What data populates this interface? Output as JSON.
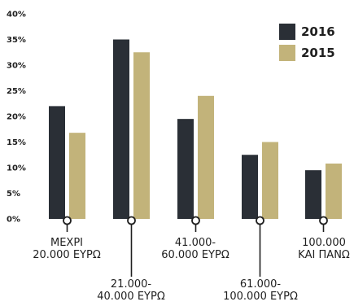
{
  "chart_data": {
    "type": "bar",
    "title": "",
    "xlabel": "",
    "ylabel": "",
    "ylim": [
      0,
      40
    ],
    "y_ticks": [
      "0%",
      "5%",
      "10%",
      "15%",
      "20%",
      "25%",
      "30%",
      "35%",
      "40%"
    ],
    "grid": false,
    "legend_position": "top-right",
    "categories": [
      [
        "ΜΕΧΡΙ",
        "20.000 ΕΥΡΩ"
      ],
      [
        "21.000-",
        "40.000 ΕΥΡΩ"
      ],
      [
        "41.000-",
        "60.000 ΕΥΡΩ"
      ],
      [
        "61.000-",
        "100.000 ΕΥΡΩ"
      ],
      [
        "100.000",
        "ΚΑΙ ΠΑΝΩ"
      ]
    ],
    "series": [
      {
        "name": "2016",
        "color": "#2a2f36",
        "values": [
          22,
          35,
          19.5,
          12.5,
          9.5
        ]
      },
      {
        "name": "2015",
        "color": "#c2b37a",
        "values": [
          16.8,
          32.5,
          24,
          15,
          10.8
        ]
      }
    ]
  }
}
